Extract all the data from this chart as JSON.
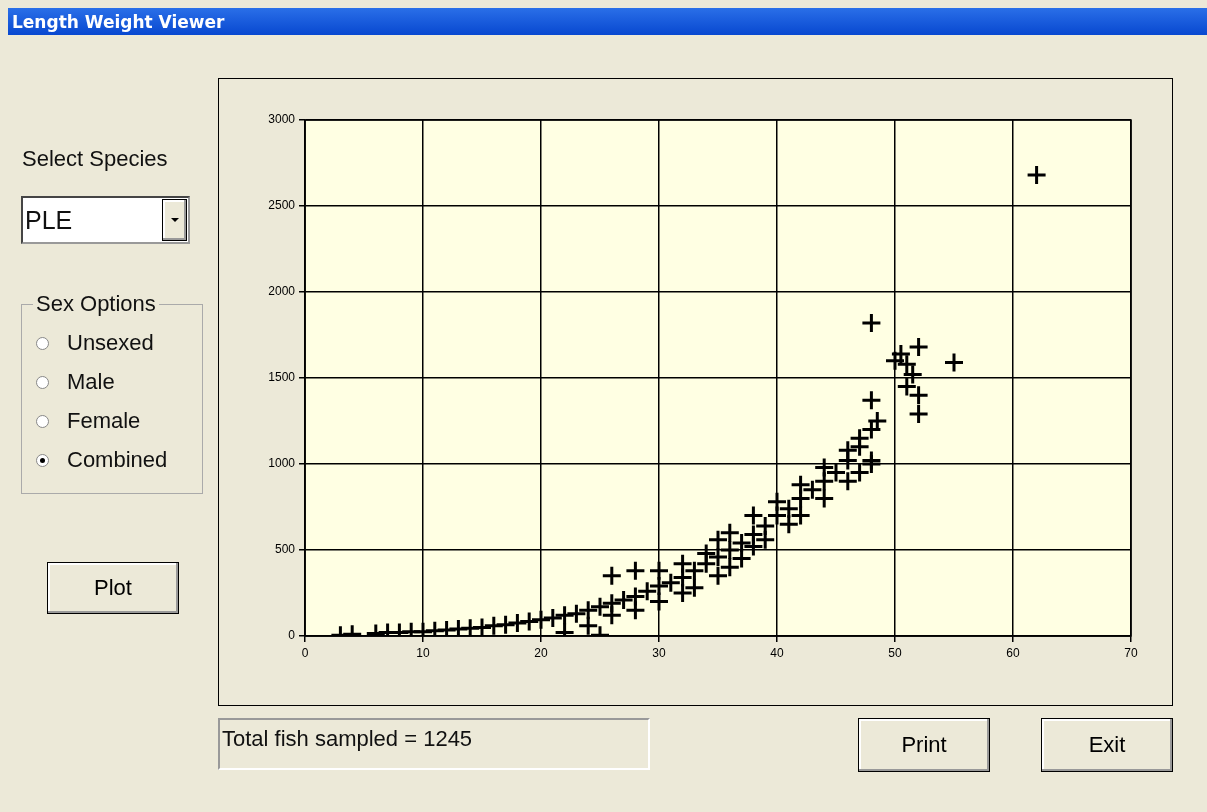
{
  "chart_data": {
    "type": "scatter",
    "title": "Length Weight Viewer",
    "annotations": [
      "Select Species",
      "PLE",
      "Sex Options",
      "Unsexed",
      "Male",
      "Female",
      "Combined",
      "Plot",
      "Total fish sampled = 1245",
      "Print",
      "Exit"
    ],
    "xlim": [
      0,
      70
    ],
    "xticks": [
      0,
      10,
      20,
      30,
      40,
      50,
      60,
      70
    ],
    "ylim": [
      0,
      3000
    ],
    "yticks": [
      0,
      500,
      1000,
      1500,
      2000,
      2500,
      3000
    ],
    "grid": true,
    "legend": false,
    "marker": "cross",
    "series": [
      {
        "color": "#000000",
        "x": [
          3,
          4,
          6,
          7,
          8,
          9,
          10,
          11,
          12,
          13,
          14,
          15,
          16,
          17,
          18,
          19,
          20,
          21,
          22,
          23,
          24,
          25,
          26,
          27,
          28,
          29,
          30,
          31,
          32,
          33,
          34,
          35,
          36,
          37,
          38,
          39,
          40,
          41,
          42,
          43,
          44,
          45,
          46,
          47,
          48,
          22,
          25,
          24,
          26,
          28,
          30,
          32,
          33,
          35,
          36,
          37,
          38,
          39,
          41,
          42,
          44,
          46,
          47,
          48,
          30,
          32,
          34,
          35,
          36,
          38,
          40,
          42,
          44,
          46,
          47,
          26,
          28,
          48,
          48.5,
          48,
          48,
          50,
          50.5,
          51,
          51.5,
          51,
          52,
          52,
          52,
          55,
          62
        ],
        "values": [
          5,
          10,
          15,
          20,
          20,
          25,
          25,
          30,
          35,
          40,
          45,
          50,
          60,
          65,
          75,
          85,
          95,
          105,
          120,
          130,
          150,
          170,
          190,
          210,
          230,
          260,
          290,
          310,
          340,
          380,
          420,
          460,
          500,
          540,
          590,
          640,
          700,
          740,
          800,
          850,
          900,
          950,
          1020,
          1100,
          1200,
          20,
          5,
          60,
          120,
          150,
          200,
          250,
          280,
          350,
          400,
          450,
          520,
          560,
          650,
          700,
          800,
          900,
          950,
          1000,
          380,
          420,
          480,
          560,
          600,
          700,
          780,
          880,
          980,
          1080,
          1150,
          350,
          380,
          1370,
          1250,
          1020,
          1820,
          1600,
          1640,
          1580,
          1520,
          1450,
          1680,
          1400,
          1290,
          1590,
          2680
        ]
      }
    ]
  }
}
